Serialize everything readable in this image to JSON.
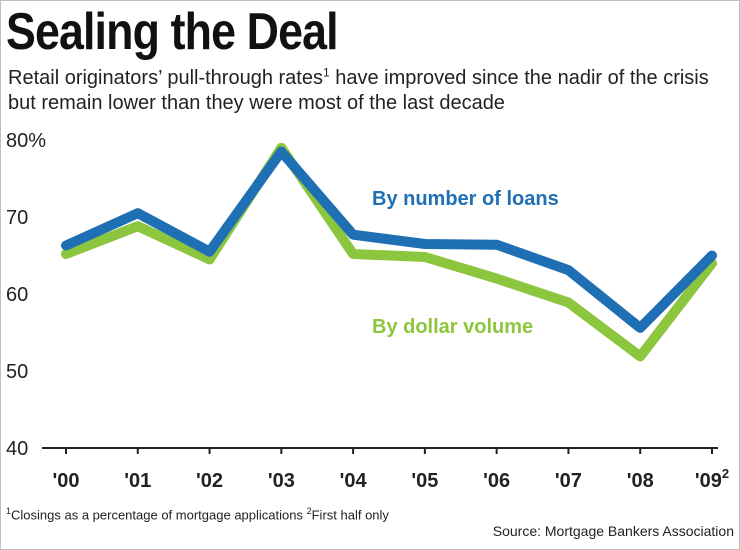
{
  "title": "Sealing the Deal",
  "subtitle_before": "Retail originators’ pull-through rates",
  "subtitle_sup": "1",
  "subtitle_after": " have improved since the nadir of the crisis but remain lower than they were most of the last decade",
  "footnote_1_mark": "1",
  "footnote_1": "Closings as a percentage of mortgage applications ",
  "footnote_2_mark": "2",
  "footnote_2": "First half only",
  "source": "Source: Mortgage Bankers Association",
  "chart_data": {
    "type": "line",
    "categories": [
      "'00",
      "'01",
      "'02",
      "'03",
      "'04",
      "'05",
      "'06",
      "'07",
      "'08",
      "'09"
    ],
    "category_sup": [
      "",
      "",
      "",
      "",
      "",
      "",
      "",
      "",
      "",
      "2"
    ],
    "y_tick_labels": [
      "80%",
      "70",
      "60",
      "50",
      "40"
    ],
    "y_ticks": [
      80,
      70,
      60,
      50,
      40
    ],
    "ylim": [
      40,
      80
    ],
    "grid": false,
    "series": [
      {
        "name": "By number of loans",
        "color": "#1f6fb5",
        "values": [
          66.3,
          70.5,
          65.5,
          78.5,
          67.7,
          66.5,
          66.4,
          63.1,
          55.6,
          65.0
        ]
      },
      {
        "name": "By dollar volume",
        "color": "#8cc63f",
        "values": [
          65.2,
          68.8,
          64.5,
          79.0,
          65.2,
          64.8,
          62.0,
          58.9,
          51.9,
          64.0
        ]
      }
    ]
  }
}
